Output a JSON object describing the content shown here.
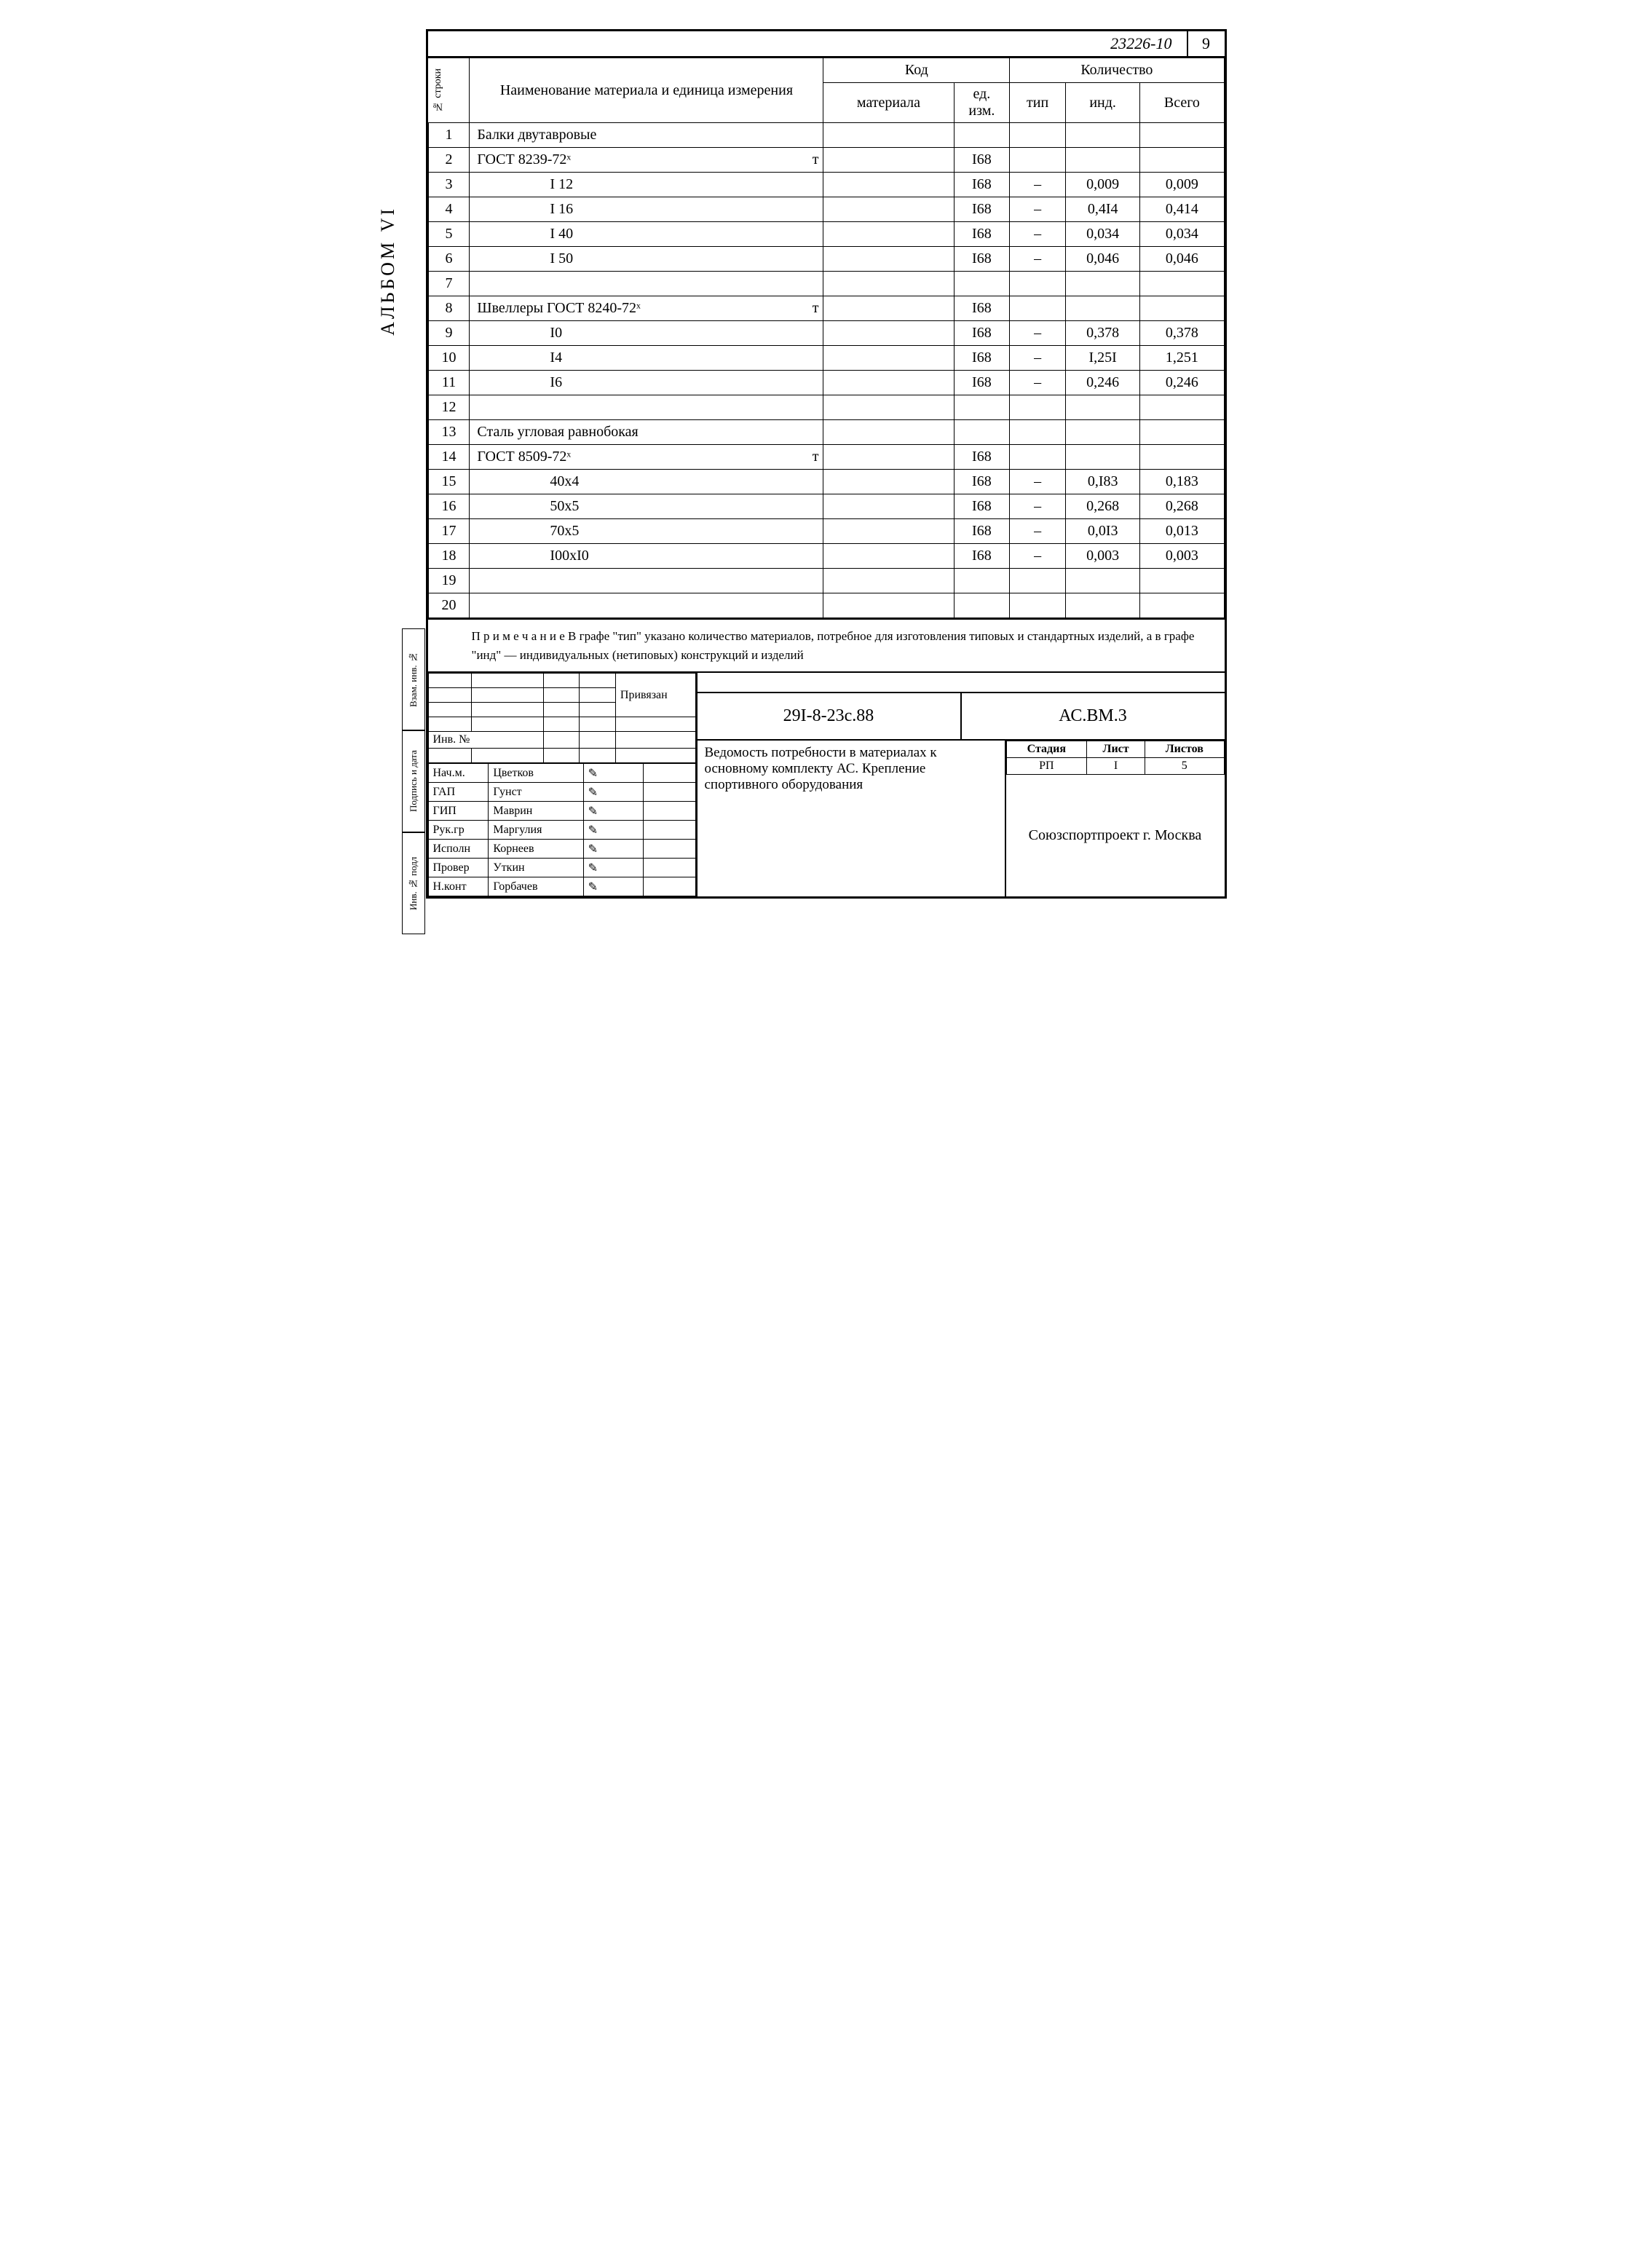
{
  "doc_number": "23226-10",
  "page_number": "9",
  "album_label": "АЛЬБОМ VI",
  "row_label": "№ строки",
  "side_labels": [
    "Взам. инв. №",
    "Подпись и дата",
    "Инв. № подл"
  ],
  "headers": {
    "name": "Наименование материала и единица измерения",
    "code": "Код",
    "material": "материала",
    "unit": "ед. изм.",
    "qty": "Количество",
    "tip": "тип",
    "ind": "инд.",
    "total": "Всего"
  },
  "rows": [
    {
      "n": "1",
      "name": "Балки двутавровые",
      "t": "",
      "indent": "indent0",
      "mat": "",
      "ed": "",
      "tip": "",
      "ind": "",
      "tot": ""
    },
    {
      "n": "2",
      "name": "ГОСТ 8239-72ˣ",
      "t": "т",
      "indent": "indent0",
      "mat": "",
      "ed": "I68",
      "tip": "",
      "ind": "",
      "tot": ""
    },
    {
      "n": "3",
      "name": "I 12",
      "t": "",
      "indent": "indent1",
      "mat": "",
      "ed": "I68",
      "tip": "–",
      "ind": "0,009",
      "tot": "0,009"
    },
    {
      "n": "4",
      "name": "I 16",
      "t": "",
      "indent": "indent1",
      "mat": "",
      "ed": "I68",
      "tip": "–",
      "ind": "0,4I4",
      "tot": "0,414"
    },
    {
      "n": "5",
      "name": "I 40",
      "t": "",
      "indent": "indent1",
      "mat": "",
      "ed": "I68",
      "tip": "–",
      "ind": "0,034",
      "tot": "0,034"
    },
    {
      "n": "6",
      "name": "I 50",
      "t": "",
      "indent": "indent1",
      "mat": "",
      "ed": "I68",
      "tip": "–",
      "ind": "0,046",
      "tot": "0,046"
    },
    {
      "n": "7",
      "name": "",
      "t": "",
      "indent": "indent0",
      "mat": "",
      "ed": "",
      "tip": "",
      "ind": "",
      "tot": ""
    },
    {
      "n": "8",
      "name": "Швеллеры ГОСТ 8240-72ˣ",
      "t": "т",
      "indent": "indent0",
      "mat": "",
      "ed": "I68",
      "tip": "",
      "ind": "",
      "tot": ""
    },
    {
      "n": "9",
      "name": "I0",
      "t": "",
      "indent": "indent1",
      "mat": "",
      "ed": "I68",
      "tip": "–",
      "ind": "0,378",
      "tot": "0,378"
    },
    {
      "n": "10",
      "name": "I4",
      "t": "",
      "indent": "indent1",
      "mat": "",
      "ed": "I68",
      "tip": "–",
      "ind": "I,25I",
      "tot": "1,251"
    },
    {
      "n": "11",
      "name": "I6",
      "t": "",
      "indent": "indent1",
      "mat": "",
      "ed": "I68",
      "tip": "–",
      "ind": "0,246",
      "tot": "0,246"
    },
    {
      "n": "12",
      "name": "",
      "t": "",
      "indent": "indent0",
      "mat": "",
      "ed": "",
      "tip": "",
      "ind": "",
      "tot": ""
    },
    {
      "n": "13",
      "name": "Сталь угловая равнобокая",
      "t": "",
      "indent": "indent0",
      "mat": "",
      "ed": "",
      "tip": "",
      "ind": "",
      "tot": ""
    },
    {
      "n": "14",
      "name": "ГОСТ 8509-72ˣ",
      "t": "т",
      "indent": "indent0",
      "mat": "",
      "ed": "I68",
      "tip": "",
      "ind": "",
      "tot": ""
    },
    {
      "n": "15",
      "name": "40х4",
      "t": "",
      "indent": "indent1",
      "mat": "",
      "ed": "I68",
      "tip": "–",
      "ind": "0,I83",
      "tot": "0,183"
    },
    {
      "n": "16",
      "name": "50х5",
      "t": "",
      "indent": "indent1",
      "mat": "",
      "ed": "I68",
      "tip": "–",
      "ind": "0,268",
      "tot": "0,268"
    },
    {
      "n": "17",
      "name": "70х5",
      "t": "",
      "indent": "indent1",
      "mat": "",
      "ed": "I68",
      "tip": "–",
      "ind": "0,0I3",
      "tot": "0,013"
    },
    {
      "n": "18",
      "name": "I00хI0",
      "t": "",
      "indent": "indent1",
      "mat": "",
      "ed": "I68",
      "tip": "–",
      "ind": "0,003",
      "tot": "0,003"
    },
    {
      "n": "19",
      "name": "",
      "t": "",
      "indent": "indent0",
      "mat": "",
      "ed": "",
      "tip": "",
      "ind": "",
      "tot": ""
    },
    {
      "n": "20",
      "name": "",
      "t": "",
      "indent": "indent0",
      "mat": "",
      "ed": "",
      "tip": "",
      "ind": "",
      "tot": ""
    }
  ],
  "note": "П р и м е ч а н и е  В графе \"тип\" указано количество материалов, потребное для изготовления типовых и стандартных изделий, а в графе \"инд\" — индивидуальных (нетиповых) конструкций и изделий",
  "privyazan": "Привязан",
  "inv_label": "Инв. №",
  "roles": [
    {
      "role": "Нач.м.",
      "name": "Цветков"
    },
    {
      "role": "ГАП",
      "name": "Гунст"
    },
    {
      "role": "ГИП",
      "name": "Маврин"
    },
    {
      "role": "Рук.гр",
      "name": "Маргулия"
    },
    {
      "role": "Исполн",
      "name": "Корнеев"
    },
    {
      "role": "Провер",
      "name": "Уткин"
    },
    {
      "role": "Н.конт",
      "name": "Горбачев"
    }
  ],
  "code1": "29I-8-23с.88",
  "code2": "АС.ВМ.3",
  "description": "Ведомость потребности в материалах к основному комплекту АС. Крепление спортивного оборудования",
  "meta_headers": {
    "stage": "Стадия",
    "sheet": "Лист",
    "sheets": "Листов"
  },
  "meta_values": {
    "stage": "РП",
    "sheet": "I",
    "sheets": "5"
  },
  "org": "Союзспортпроект г. Москва"
}
